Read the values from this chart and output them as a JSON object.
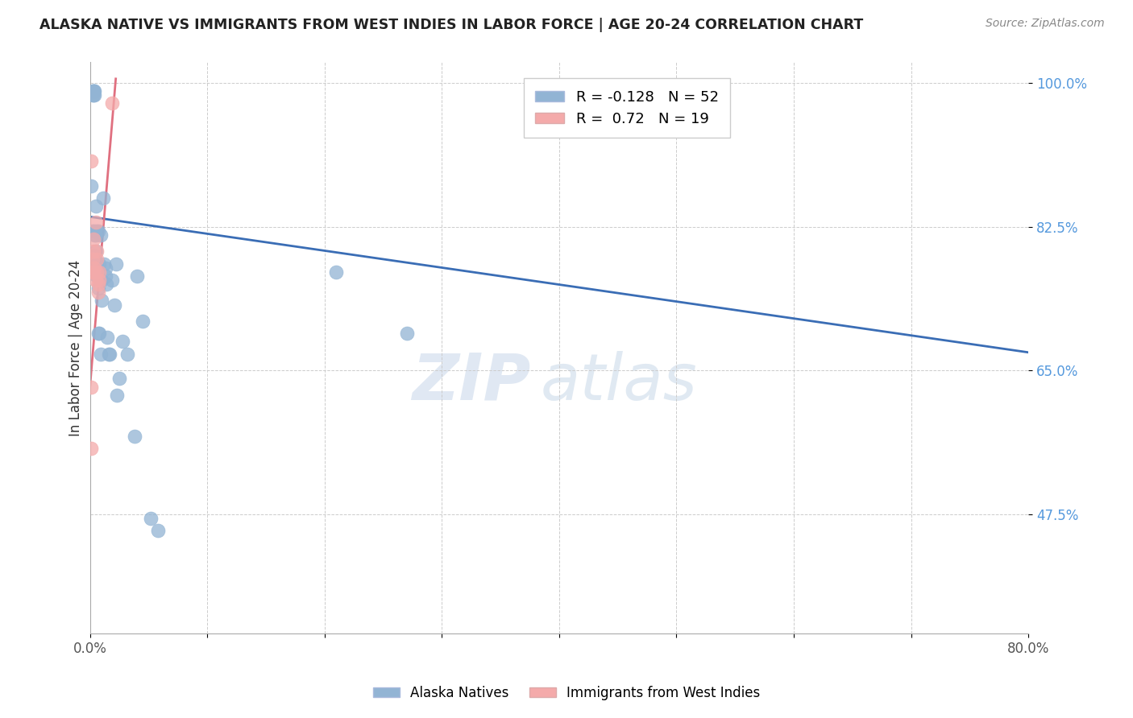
{
  "title": "ALASKA NATIVE VS IMMIGRANTS FROM WEST INDIES IN LABOR FORCE | AGE 20-24 CORRELATION CHART",
  "source": "Source: ZipAtlas.com",
  "ylabel": "In Labor Force | Age 20-24",
  "x_min": 0.0,
  "x_max": 0.8,
  "y_min": 0.33,
  "y_max": 1.025,
  "x_ticks": [
    0.0,
    0.1,
    0.2,
    0.3,
    0.4,
    0.5,
    0.6,
    0.7,
    0.8
  ],
  "x_tick_labels": [
    "0.0%",
    "",
    "",
    "",
    "",
    "",
    "",
    "",
    "80.0%"
  ],
  "y_ticks": [
    0.475,
    0.65,
    0.825,
    1.0
  ],
  "y_tick_labels": [
    "47.5%",
    "65.0%",
    "82.5%",
    "100.0%"
  ],
  "blue_R": -0.128,
  "blue_N": 52,
  "pink_R": 0.72,
  "pink_N": 19,
  "blue_color": "#92B4D4",
  "pink_color": "#F4AAAA",
  "blue_line_color": "#3A6DB5",
  "pink_line_color": "#E07080",
  "watermark_zip": "ZIP",
  "watermark_atlas": "atlas",
  "legend_label_blue": "Alaska Natives",
  "legend_label_pink": "Immigrants from West Indies",
  "blue_x": [
    0.001,
    0.002,
    0.002,
    0.003,
    0.003,
    0.003,
    0.003,
    0.004,
    0.004,
    0.004,
    0.004,
    0.004,
    0.005,
    0.005,
    0.005,
    0.005,
    0.005,
    0.006,
    0.006,
    0.006,
    0.006,
    0.007,
    0.007,
    0.007,
    0.008,
    0.008,
    0.009,
    0.009,
    0.01,
    0.01,
    0.011,
    0.012,
    0.013,
    0.013,
    0.014,
    0.015,
    0.016,
    0.017,
    0.019,
    0.021,
    0.022,
    0.023,
    0.025,
    0.028,
    0.032,
    0.038,
    0.04,
    0.045,
    0.052,
    0.058,
    0.21,
    0.27
  ],
  "blue_y": [
    0.875,
    0.82,
    0.985,
    0.99,
    0.99,
    0.99,
    0.985,
    0.99,
    0.985,
    0.82,
    0.815,
    0.79,
    0.795,
    0.815,
    0.85,
    0.775,
    0.77,
    0.82,
    0.78,
    0.775,
    0.765,
    0.82,
    0.75,
    0.695,
    0.78,
    0.695,
    0.815,
    0.67,
    0.76,
    0.735,
    0.86,
    0.78,
    0.775,
    0.765,
    0.755,
    0.69,
    0.67,
    0.67,
    0.76,
    0.73,
    0.78,
    0.62,
    0.64,
    0.685,
    0.67,
    0.57,
    0.765,
    0.71,
    0.47,
    0.455,
    0.77,
    0.695
  ],
  "pink_x": [
    0.001,
    0.001,
    0.001,
    0.002,
    0.002,
    0.003,
    0.003,
    0.003,
    0.004,
    0.005,
    0.005,
    0.006,
    0.006,
    0.006,
    0.007,
    0.007,
    0.008,
    0.008,
    0.019
  ],
  "pink_y": [
    0.905,
    0.63,
    0.555,
    0.785,
    0.77,
    0.81,
    0.795,
    0.77,
    0.775,
    0.83,
    0.76,
    0.795,
    0.785,
    0.77,
    0.755,
    0.745,
    0.77,
    0.76,
    0.975
  ],
  "blue_line_x0": 0.0,
  "blue_line_x1": 0.8,
  "blue_line_y0": 0.837,
  "blue_line_y1": 0.672,
  "pink_line_x0": 0.0,
  "pink_line_x1": 0.022,
  "pink_line_y0": 0.63,
  "pink_line_y1": 1.005
}
